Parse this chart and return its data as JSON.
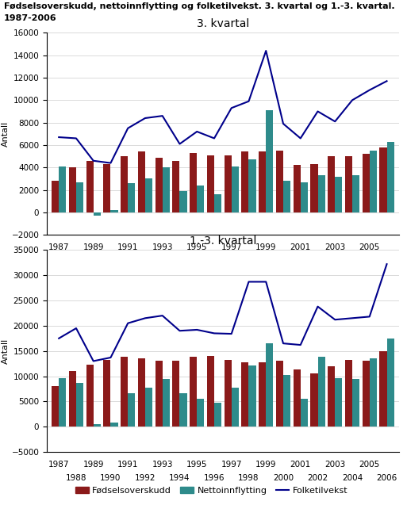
{
  "title_line1": "Fødselsoverskudd, nettoinnflytting og folketilvekst. 3. kvartal og 1.-3. kvartal.",
  "title_line2": "1987-2006",
  "years": [
    1987,
    1988,
    1989,
    1990,
    1991,
    1992,
    1993,
    1994,
    1995,
    1996,
    1997,
    1998,
    1999,
    2000,
    2001,
    2002,
    2003,
    2004,
    2005,
    2006
  ],
  "q3_fodsels": [
    2800,
    4000,
    4600,
    4300,
    5000,
    5400,
    4900,
    4600,
    5300,
    5100,
    5100,
    5400,
    5400,
    5500,
    4200,
    4300,
    5000,
    5000,
    5200,
    5800
  ],
  "q3_netto": [
    4100,
    2700,
    -300,
    200,
    2600,
    3000,
    4000,
    1900,
    2400,
    1600,
    4100,
    4700,
    9100,
    2800,
    2700,
    3300,
    3200,
    3300,
    5500,
    6300
  ],
  "q3_folk": [
    6700,
    6600,
    4600,
    4400,
    7500,
    8400,
    8600,
    6100,
    7200,
    6600,
    9300,
    9900,
    14400,
    7900,
    6600,
    9000,
    8100,
    10000,
    10900,
    11700
  ],
  "q13_fodsels": [
    8000,
    11100,
    12300,
    13200,
    13900,
    13600,
    13100,
    13100,
    13900,
    14000,
    13200,
    12700,
    12700,
    13100,
    11400,
    10500,
    12000,
    13200,
    13000,
    15000
  ],
  "q13_netto": [
    9600,
    8600,
    500,
    900,
    6700,
    7800,
    9400,
    6600,
    5600,
    4700,
    7800,
    12200,
    16500,
    10300,
    5600,
    13900,
    9600,
    9500,
    13500,
    17500
  ],
  "q13_folk": [
    17500,
    19500,
    13000,
    13700,
    20500,
    21500,
    22000,
    19000,
    19200,
    18500,
    18400,
    28700,
    28700,
    16500,
    16200,
    23800,
    21200,
    21500,
    21800,
    32200
  ],
  "bar_color_fodsels": "#8B1A1A",
  "bar_color_netto": "#2E8B8B",
  "line_color_folk": "#00008B",
  "bg_color": "#ffffff",
  "grid_color": "#cccccc",
  "q3_title": "3. kvartal",
  "q13_title": "1.-3. kvartal",
  "ylabel": "Antall",
  "q3_ylim": [
    -2000,
    16000
  ],
  "q3_yticks": [
    -2000,
    0,
    2000,
    4000,
    6000,
    8000,
    10000,
    12000,
    14000,
    16000
  ],
  "q13_ylim": [
    -5000,
    35000
  ],
  "q13_yticks": [
    -5000,
    0,
    5000,
    10000,
    15000,
    20000,
    25000,
    30000,
    35000
  ],
  "legend_labels": [
    "Fødselsoverskudd",
    "Nettoinnflytting",
    "Folketilvekst"
  ]
}
